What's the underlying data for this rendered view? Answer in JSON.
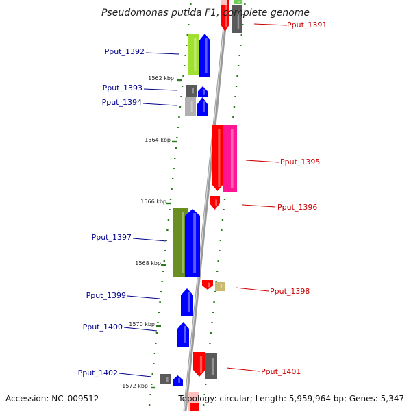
{
  "title": "Pseudomonas putida F1, complete genome",
  "footer": {
    "accession": "Accession: NC_009512",
    "topology": "Topology: circular; Length: 5,959,964 bp; Genes: 5,347"
  },
  "colors": {
    "left_label": "#00008b",
    "right_label": "#cc0000",
    "dots": "#2a7a1e",
    "backbone": "#9a9a9a",
    "blue": "#0000ff",
    "red": "#ff0000",
    "magenta": "#ff1493",
    "lime": "#a0e030",
    "olive": "#6b8e23",
    "gray": "#5a5a5a",
    "silver": "#b0b0b0",
    "khaki": "#c8b870"
  },
  "kbp_markers": [
    "1562 kbp",
    "1564 kbp",
    "1566 kbp",
    "1568 kbp",
    "1570 kbp",
    "1572 kbp"
  ],
  "gene_labels": [
    {
      "name": "Pput_1391",
      "side": "right"
    },
    {
      "name": "Pput_1392",
      "side": "left"
    },
    {
      "name": "Pput_1393",
      "side": "left"
    },
    {
      "name": "Pput_1394",
      "side": "left"
    },
    {
      "name": "Pput_1395",
      "side": "right"
    },
    {
      "name": "Pput_1396",
      "side": "right"
    },
    {
      "name": "Pput_1397",
      "side": "left"
    },
    {
      "name": "Pput_1398",
      "side": "right"
    },
    {
      "name": "Pput_1399",
      "side": "left"
    },
    {
      "name": "Pput_1400",
      "side": "left"
    },
    {
      "name": "Pput_1401",
      "side": "right"
    },
    {
      "name": "Pput_1402",
      "side": "left"
    }
  ]
}
